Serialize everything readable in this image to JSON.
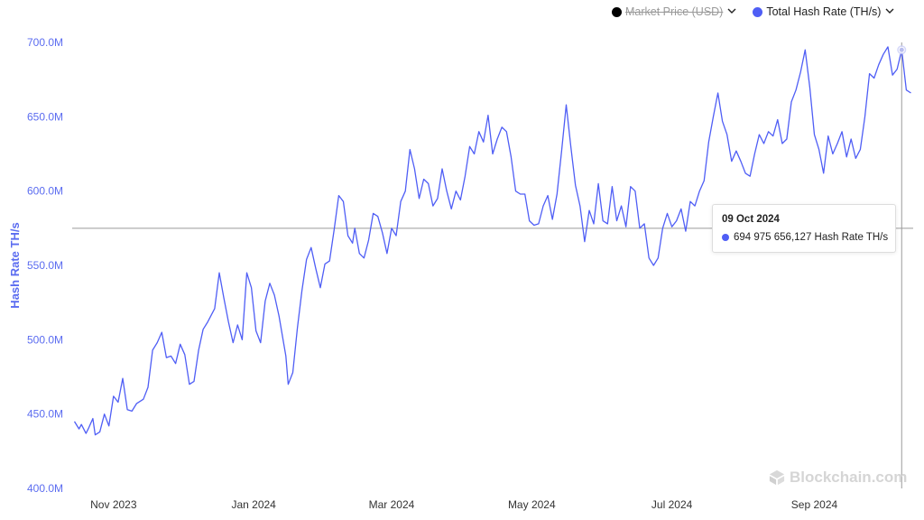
{
  "legend": {
    "items": [
      {
        "label": "Market Price (USD)",
        "color": "#000000",
        "disabled": true,
        "chevron": "chevron-down-icon"
      },
      {
        "label": "Total Hash Rate (TH/s)",
        "color": "#4f5ef5",
        "disabled": false,
        "chevron": "chevron-down-icon"
      }
    ]
  },
  "tooltip": {
    "date": "09 Oct 2024",
    "value_text": "694 975 656,127 Hash Rate TH/s",
    "color": "#4f5ef5"
  },
  "watermark": {
    "text": "Blockchain.com"
  },
  "colors": {
    "line": "#4f5ef5",
    "axis_text": "#5b6cf0",
    "crosshair": "#9a9a9a"
  },
  "chart_data": {
    "type": "line",
    "title": "",
    "xlabel": "",
    "ylabel": "Hash Rate TH/s",
    "ylim": [
      400000000,
      700000000
    ],
    "y_ticks": [
      400000000,
      450000000,
      500000000,
      550000000,
      600000000,
      650000000,
      700000000
    ],
    "y_tick_labels": [
      "400.0M",
      "450.0M",
      "500.0M",
      "550.0M",
      "600.0M",
      "650.0M",
      "700.0M"
    ],
    "xlim": [
      "2023-10-14",
      "2024-10-14"
    ],
    "x_ticks": [
      "2023-11-01",
      "2024-01-01",
      "2024-03-01",
      "2024-05-01",
      "2024-07-01",
      "2024-09-01"
    ],
    "x_tick_labels": [
      "Nov 2023",
      "Jan 2024",
      "Mar 2024",
      "May 2024",
      "Jul 2024",
      "Sep 2024"
    ],
    "grid": false,
    "legend_position": "top-right",
    "crosshair": {
      "x": "2024-10-09",
      "y": 575000000
    },
    "series": [
      {
        "name": "Total Hash Rate (TH/s)",
        "color": "#4f5ef5",
        "points": [
          [
            "2023-10-15",
            445000000
          ],
          [
            "2023-10-17",
            440000000
          ],
          [
            "2023-10-18",
            443000000
          ],
          [
            "2023-10-20",
            437000000
          ],
          [
            "2023-10-21",
            440000000
          ],
          [
            "2023-10-23",
            447000000
          ],
          [
            "2023-10-24",
            436000000
          ],
          [
            "2023-10-26",
            438000000
          ],
          [
            "2023-10-28",
            450000000
          ],
          [
            "2023-10-30",
            442000000
          ],
          [
            "2023-11-01",
            462000000
          ],
          [
            "2023-11-03",
            458000000
          ],
          [
            "2023-11-05",
            474000000
          ],
          [
            "2023-11-07",
            453000000
          ],
          [
            "2023-11-09",
            452000000
          ],
          [
            "2023-11-11",
            457000000
          ],
          [
            "2023-11-14",
            460000000
          ],
          [
            "2023-11-16",
            468000000
          ],
          [
            "2023-11-18",
            493000000
          ],
          [
            "2023-11-20",
            498000000
          ],
          [
            "2023-11-22",
            505000000
          ],
          [
            "2023-11-24",
            488000000
          ],
          [
            "2023-11-26",
            489000000
          ],
          [
            "2023-11-28",
            484000000
          ],
          [
            "2023-11-30",
            497000000
          ],
          [
            "2023-12-02",
            490000000
          ],
          [
            "2023-12-04",
            470000000
          ],
          [
            "2023-12-06",
            472000000
          ],
          [
            "2023-12-08",
            493000000
          ],
          [
            "2023-12-10",
            507000000
          ],
          [
            "2023-12-12",
            512000000
          ],
          [
            "2023-12-15",
            521000000
          ],
          [
            "2023-12-17",
            545000000
          ],
          [
            "2023-12-19",
            528000000
          ],
          [
            "2023-12-21",
            512000000
          ],
          [
            "2023-12-23",
            498000000
          ],
          [
            "2023-12-25",
            510000000
          ],
          [
            "2023-12-27",
            500000000
          ],
          [
            "2023-12-29",
            545000000
          ],
          [
            "2023-12-31",
            535000000
          ],
          [
            "2024-01-02",
            506000000
          ],
          [
            "2024-01-04",
            498000000
          ],
          [
            "2024-01-06",
            526000000
          ],
          [
            "2024-01-08",
            538000000
          ],
          [
            "2024-01-10",
            530000000
          ],
          [
            "2024-01-12",
            516000000
          ],
          [
            "2024-01-15",
            489000000
          ],
          [
            "2024-01-16",
            470000000
          ],
          [
            "2024-01-18",
            478000000
          ],
          [
            "2024-01-20",
            508000000
          ],
          [
            "2024-01-22",
            533000000
          ],
          [
            "2024-01-24",
            554000000
          ],
          [
            "2024-01-26",
            562000000
          ],
          [
            "2024-01-28",
            548000000
          ],
          [
            "2024-01-30",
            535000000
          ],
          [
            "2024-02-01",
            551000000
          ],
          [
            "2024-02-03",
            553000000
          ],
          [
            "2024-02-05",
            574000000
          ],
          [
            "2024-02-07",
            597000000
          ],
          [
            "2024-02-09",
            593000000
          ],
          [
            "2024-02-11",
            570000000
          ],
          [
            "2024-02-13",
            565000000
          ],
          [
            "2024-02-14",
            575000000
          ],
          [
            "2024-02-16",
            558000000
          ],
          [
            "2024-02-18",
            555000000
          ],
          [
            "2024-02-20",
            567000000
          ],
          [
            "2024-02-22",
            585000000
          ],
          [
            "2024-02-24",
            583000000
          ],
          [
            "2024-02-26",
            572000000
          ],
          [
            "2024-02-28",
            558000000
          ],
          [
            "2024-03-01",
            575000000
          ],
          [
            "2024-03-03",
            570000000
          ],
          [
            "2024-03-05",
            593000000
          ],
          [
            "2024-03-07",
            600000000
          ],
          [
            "2024-03-09",
            628000000
          ],
          [
            "2024-03-11",
            615000000
          ],
          [
            "2024-03-13",
            595000000
          ],
          [
            "2024-03-15",
            608000000
          ],
          [
            "2024-03-17",
            605000000
          ],
          [
            "2024-03-19",
            590000000
          ],
          [
            "2024-03-21",
            595000000
          ],
          [
            "2024-03-23",
            615000000
          ],
          [
            "2024-03-25",
            600000000
          ],
          [
            "2024-03-27",
            588000000
          ],
          [
            "2024-03-29",
            600000000
          ],
          [
            "2024-03-31",
            594000000
          ],
          [
            "2024-04-02",
            610000000
          ],
          [
            "2024-04-04",
            630000000
          ],
          [
            "2024-04-06",
            625000000
          ],
          [
            "2024-04-08",
            640000000
          ],
          [
            "2024-04-10",
            633000000
          ],
          [
            "2024-04-12",
            651000000
          ],
          [
            "2024-04-14",
            625000000
          ],
          [
            "2024-04-16",
            635000000
          ],
          [
            "2024-04-18",
            643000000
          ],
          [
            "2024-04-20",
            640000000
          ],
          [
            "2024-04-22",
            623000000
          ],
          [
            "2024-04-24",
            600000000
          ],
          [
            "2024-04-26",
            598000000
          ],
          [
            "2024-04-28",
            598000000
          ],
          [
            "2024-04-30",
            580000000
          ],
          [
            "2024-05-02",
            577000000
          ],
          [
            "2024-05-04",
            578000000
          ],
          [
            "2024-05-06",
            590000000
          ],
          [
            "2024-05-08",
            597000000
          ],
          [
            "2024-05-10",
            581000000
          ],
          [
            "2024-05-12",
            598000000
          ],
          [
            "2024-05-14",
            627000000
          ],
          [
            "2024-05-16",
            658000000
          ],
          [
            "2024-05-18",
            630000000
          ],
          [
            "2024-05-20",
            604000000
          ],
          [
            "2024-05-22",
            590000000
          ],
          [
            "2024-05-24",
            566000000
          ],
          [
            "2024-05-26",
            587000000
          ],
          [
            "2024-05-28",
            578000000
          ],
          [
            "2024-05-30",
            605000000
          ],
          [
            "2024-06-01",
            580000000
          ],
          [
            "2024-06-03",
            578000000
          ],
          [
            "2024-06-05",
            603000000
          ],
          [
            "2024-06-07",
            580000000
          ],
          [
            "2024-06-09",
            590000000
          ],
          [
            "2024-06-11",
            576000000
          ],
          [
            "2024-06-13",
            603000000
          ],
          [
            "2024-06-15",
            600000000
          ],
          [
            "2024-06-17",
            575000000
          ],
          [
            "2024-06-19",
            578000000
          ],
          [
            "2024-06-21",
            555000000
          ],
          [
            "2024-06-23",
            550000000
          ],
          [
            "2024-06-25",
            555000000
          ],
          [
            "2024-06-27",
            575000000
          ],
          [
            "2024-06-29",
            585000000
          ],
          [
            "2024-07-01",
            576000000
          ],
          [
            "2024-07-03",
            580000000
          ],
          [
            "2024-07-05",
            588000000
          ],
          [
            "2024-07-07",
            573000000
          ],
          [
            "2024-07-09",
            593000000
          ],
          [
            "2024-07-11",
            590000000
          ],
          [
            "2024-07-13",
            600000000
          ],
          [
            "2024-07-15",
            607000000
          ],
          [
            "2024-07-17",
            633000000
          ],
          [
            "2024-07-19",
            650000000
          ],
          [
            "2024-07-21",
            666000000
          ],
          [
            "2024-07-23",
            647000000
          ],
          [
            "2024-07-25",
            638000000
          ],
          [
            "2024-07-27",
            620000000
          ],
          [
            "2024-07-29",
            627000000
          ],
          [
            "2024-07-31",
            620000000
          ],
          [
            "2024-08-02",
            612000000
          ],
          [
            "2024-08-04",
            610000000
          ],
          [
            "2024-08-06",
            625000000
          ],
          [
            "2024-08-08",
            638000000
          ],
          [
            "2024-08-10",
            632000000
          ],
          [
            "2024-08-12",
            640000000
          ],
          [
            "2024-08-14",
            637000000
          ],
          [
            "2024-08-16",
            648000000
          ],
          [
            "2024-08-18",
            632000000
          ],
          [
            "2024-08-20",
            635000000
          ],
          [
            "2024-08-22",
            660000000
          ],
          [
            "2024-08-24",
            668000000
          ],
          [
            "2024-08-26",
            680000000
          ],
          [
            "2024-08-28",
            695000000
          ],
          [
            "2024-08-30",
            670000000
          ],
          [
            "2024-09-01",
            638000000
          ],
          [
            "2024-09-03",
            628000000
          ],
          [
            "2024-09-05",
            612000000
          ],
          [
            "2024-09-07",
            637000000
          ],
          [
            "2024-09-09",
            625000000
          ],
          [
            "2024-09-11",
            632000000
          ],
          [
            "2024-09-13",
            640000000
          ],
          [
            "2024-09-15",
            623000000
          ],
          [
            "2024-09-17",
            635000000
          ],
          [
            "2024-09-19",
            622000000
          ],
          [
            "2024-09-21",
            628000000
          ],
          [
            "2024-09-23",
            650000000
          ],
          [
            "2024-09-25",
            679000000
          ],
          [
            "2024-09-27",
            676000000
          ],
          [
            "2024-09-29",
            685000000
          ],
          [
            "2024-10-01",
            692000000
          ],
          [
            "2024-10-03",
            697000000
          ],
          [
            "2024-10-05",
            678000000
          ],
          [
            "2024-10-07",
            682000000
          ],
          [
            "2024-10-09",
            694975656
          ],
          [
            "2024-10-11",
            668000000
          ],
          [
            "2024-10-13",
            666000000
          ]
        ]
      }
    ]
  }
}
